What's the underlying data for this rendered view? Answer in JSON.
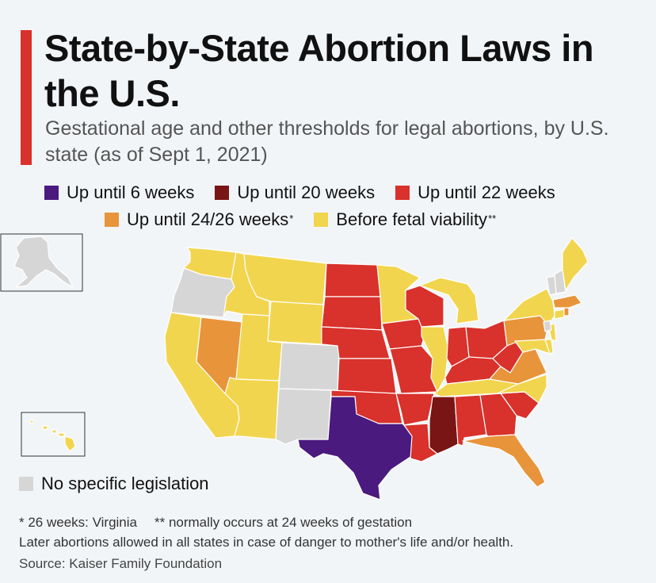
{
  "title": "State-by-State Abortion Laws in the U.S.",
  "subtitle": "Gestational age and other thresholds for legal abortions, by U.S. state (as of Sept 1, 2021)",
  "colors": {
    "six_weeks": "#4a1a7e",
    "twenty_weeks": "#7a1515",
    "twentytwo_weeks": "#d9312b",
    "twentyfour_weeks": "#e8943a",
    "viability": "#f2d54e",
    "no_law": "#d6d6d6"
  },
  "legend": {
    "six_weeks": "Up until 6 weeks",
    "twenty_weeks": "Up until 20 weeks",
    "twentytwo_weeks": "Up until 22 weeks",
    "twentyfour_weeks": "Up until 24/26 weeks",
    "twentyfour_mark": "*",
    "viability": "Before fetal viability",
    "viability_mark": "**",
    "no_law": "No specific legislation"
  },
  "footnotes": {
    "note1": "* 26 weeks: Virginia",
    "note2": "** normally occurs at 24 weeks of gestation",
    "note3": "Later abortions allowed in all states in case of danger to mother's life and/or health.",
    "source": "Source: Kaiser Family Foundation"
  },
  "states": {
    "six_weeks": [
      "Texas"
    ],
    "twenty_weeks": [
      "Mississippi"
    ],
    "twentytwo_weeks": [
      "North Dakota",
      "South Dakota",
      "Nebraska",
      "Kansas",
      "Oklahoma",
      "Iowa",
      "Wisconsin",
      "Missouri",
      "Arkansas",
      "Louisiana",
      "Indiana",
      "Ohio",
      "Kentucky",
      "West Virginia",
      "Alabama",
      "Georgia",
      "South Carolina"
    ],
    "twentyfour_weeks": [
      "Nevada",
      "Pennsylvania",
      "Virginia",
      "Massachusetts",
      "Florida",
      "Rhode Island"
    ],
    "viability": [
      "Washington",
      "Idaho",
      "Montana",
      "Wyoming",
      "Utah",
      "California",
      "Arizona",
      "Minnesota",
      "Illinois",
      "Michigan",
      "Tennessee",
      "North Carolina",
      "New York",
      "Maine",
      "Connecticut",
      "Maryland",
      "Delaware",
      "New Jersey",
      "Hawaii"
    ],
    "no_law": [
      "Alaska",
      "Oregon",
      "Colorado",
      "New Mexico",
      "Vermont",
      "New Hampshire",
      "District of Columbia"
    ]
  }
}
